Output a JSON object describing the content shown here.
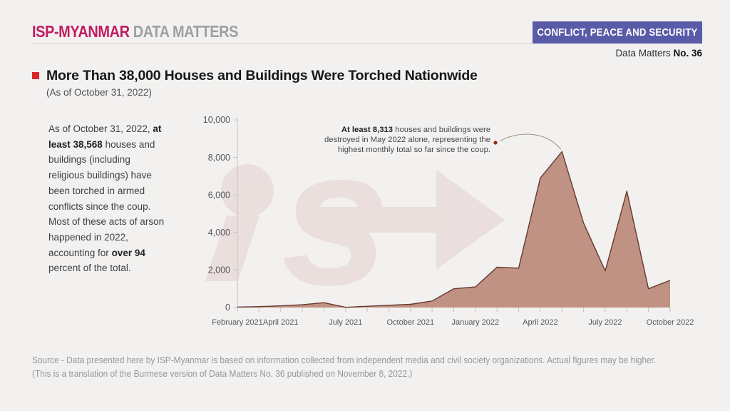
{
  "header": {
    "brand_primary": "ISP-MYANMAR",
    "brand_secondary": "DATA MATTERS",
    "category_badge": "CONFLICT, PEACE AND SECURITY",
    "issue_prefix": "Data Matters",
    "issue_number": "No. 36"
  },
  "title": {
    "text": "More Than 38,000 Houses and Buildings Were Torched Nationwide",
    "subtitle": "(As of October 31, 2022)"
  },
  "summary": {
    "part1": "As of October 31, 2022, ",
    "bold1": "at least 38,568",
    "part2": " houses and buildings (including religious buildings) have been torched in armed conflicts since the coup. Most of these acts of arson happened in 2022, accounting for ",
    "bold2": "over 94",
    "part3": " percent of the total."
  },
  "annotation": {
    "bold": "At least 8,313",
    "rest1": " houses and buildings were",
    "line2": "destroyed in May 2022 alone, representing the",
    "line3": "highest monthly total so far since the coup."
  },
  "watermark": {
    "label": "isp-logo-arrow"
  },
  "chart_data": {
    "type": "area",
    "title": "Houses and buildings torched per month",
    "x": [
      "Feb 2021",
      "Mar 2021",
      "Apr 2021",
      "May 2021",
      "Jun 2021",
      "Jul 2021",
      "Aug 2021",
      "Sep 2021",
      "Oct 2021",
      "Nov 2021",
      "Dec 2021",
      "Jan 2022",
      "Feb 2022",
      "Mar 2022",
      "Apr 2022",
      "May 2022",
      "Jun 2022",
      "Jul 2022",
      "Aug 2022",
      "Sep 2022",
      "Oct 2022"
    ],
    "values": [
      25,
      50,
      90,
      150,
      260,
      10,
      70,
      120,
      170,
      350,
      1000,
      1100,
      2150,
      2100,
      6900,
      8313,
      4500,
      1950,
      6200,
      1000,
      1450
    ],
    "x_tick_labels": [
      "February 2021",
      "April 2021",
      "July 2021",
      "October 2021",
      "January 2022",
      "April 2022",
      "July 2022",
      "October 2022"
    ],
    "x_tick_indices": [
      0,
      2,
      5,
      8,
      11,
      14,
      17,
      20
    ],
    "y_ticks": [
      0,
      2000,
      4000,
      6000,
      8000,
      10000
    ],
    "y_tick_labels": [
      "0",
      "2,000",
      "4,000",
      "6,000",
      "8,000",
      "10,000"
    ],
    "ylim": [
      0,
      10000
    ],
    "grid": false,
    "legend": "none",
    "annotated_point": {
      "x": "May 2022",
      "value": 8313
    }
  },
  "source": {
    "line1": "Source - Data presented here by ISP-Myanmar is based on information collected from independent media and civil society organizations. Actual figures may be higher.",
    "line2": "(This is a translation of the Burmese version of Data Matters No. 36 published on November 8, 2022.)"
  },
  "colors": {
    "brand_magenta": "#c01e5f",
    "brand_gray": "#9ea0a3",
    "badge_purple": "#5a5ba8",
    "bullet_red": "#d8262c",
    "area_fill": "#c09283",
    "area_stroke": "#66392f",
    "axis_gray": "#c7c4c1",
    "label_gray": "#55565a",
    "background": "#f2f1f0",
    "annotation_dot": "#8f2c20"
  }
}
